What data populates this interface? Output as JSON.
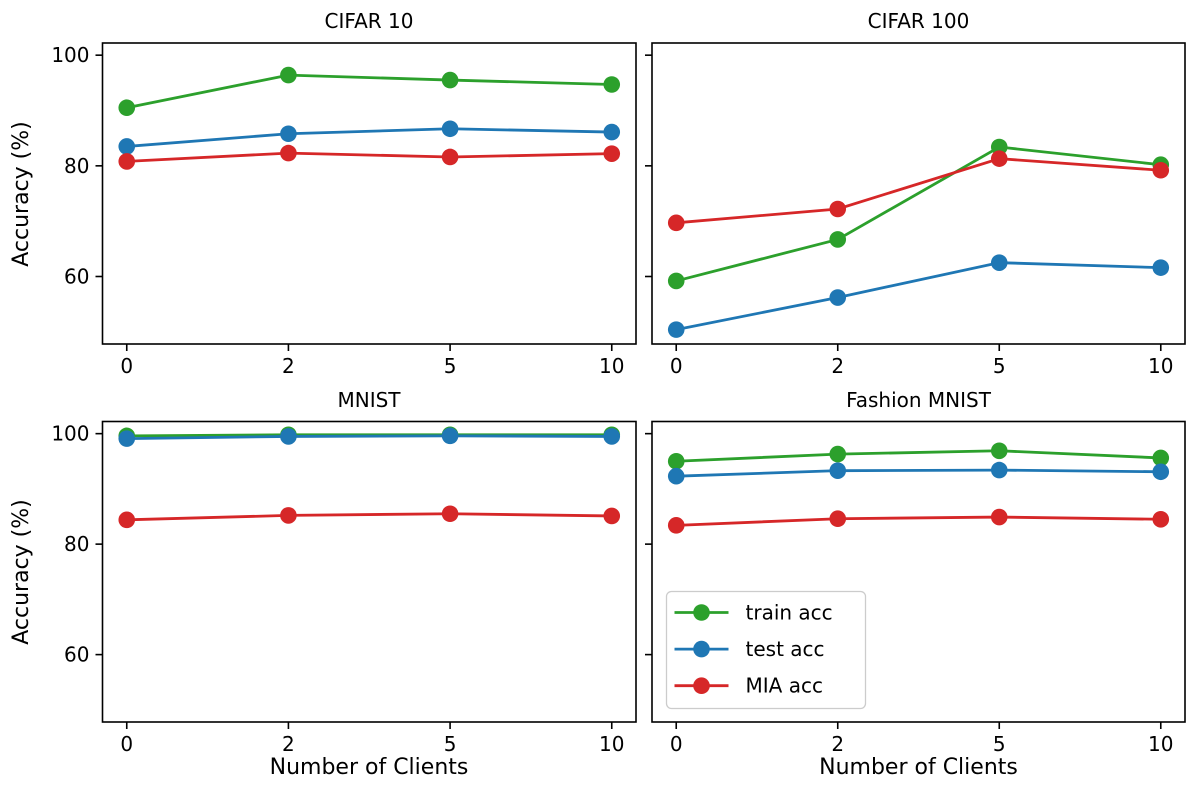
{
  "figure": {
    "ylabel": "Accuracy (%)",
    "xlabel": "Number of Clients",
    "background_color": "#ffffff",
    "text_color": "#000000",
    "legend": {
      "visible": true,
      "location": "lower left of Fashion MNIST panel",
      "items": [
        "train acc",
        "test acc",
        "MIA acc"
      ],
      "border_color": "#cccccc",
      "background_color": "#ffffff"
    },
    "series_colors": {
      "train acc": "#2ca02c",
      "test acc": "#1f77b4",
      "MIA acc": "#d62728"
    }
  },
  "chart_data": [
    {
      "type": "line",
      "title": "CIFAR 10",
      "categories": [
        "0",
        "2",
        "5",
        "10"
      ],
      "series": [
        {
          "name": "train acc",
          "color": "#2ca02c",
          "values": [
            90.5,
            96.4,
            95.5,
            94.7
          ]
        },
        {
          "name": "test acc",
          "color": "#1f77b4",
          "values": [
            83.5,
            85.8,
            86.7,
            86.1
          ]
        },
        {
          "name": "MIA acc",
          "color": "#d62728",
          "values": [
            80.8,
            82.3,
            81.6,
            82.2
          ]
        }
      ],
      "ylim": [
        47.8,
        102.2
      ],
      "yticks": [
        60,
        80,
        100
      ],
      "ytick_labels": [
        "60",
        "80",
        "100"
      ],
      "ytick_labels_shown": true,
      "xtick_labels_shown": true,
      "grid": false,
      "legend_shown": false
    },
    {
      "type": "line",
      "title": "CIFAR 100",
      "categories": [
        "0",
        "2",
        "5",
        "10"
      ],
      "series": [
        {
          "name": "train acc",
          "color": "#2ca02c",
          "values": [
            59.2,
            66.7,
            83.4,
            80.2
          ]
        },
        {
          "name": "test acc",
          "color": "#1f77b4",
          "values": [
            50.4,
            56.2,
            62.5,
            61.6
          ]
        },
        {
          "name": "MIA acc",
          "color": "#d62728",
          "values": [
            69.7,
            72.2,
            81.3,
            79.2
          ]
        }
      ],
      "ylim": [
        47.8,
        102.2
      ],
      "yticks": [
        60,
        80,
        100
      ],
      "ytick_labels": [
        "60",
        "80",
        "100"
      ],
      "ytick_labels_shown": false,
      "xtick_labels_shown": true,
      "grid": false,
      "legend_shown": false
    },
    {
      "type": "line",
      "title": "MNIST",
      "categories": [
        "0",
        "2",
        "5",
        "10"
      ],
      "series": [
        {
          "name": "train acc",
          "color": "#2ca02c",
          "values": [
            99.6,
            99.8,
            99.8,
            99.8
          ]
        },
        {
          "name": "test acc",
          "color": "#1f77b4",
          "values": [
            99.1,
            99.5,
            99.6,
            99.5
          ]
        },
        {
          "name": "MIA acc",
          "color": "#d62728",
          "values": [
            84.4,
            85.2,
            85.5,
            85.1
          ]
        }
      ],
      "ylim": [
        47.8,
        102.2
      ],
      "yticks": [
        60,
        80,
        100
      ],
      "ytick_labels": [
        "60",
        "80",
        "100"
      ],
      "ytick_labels_shown": true,
      "xtick_labels_shown": true,
      "grid": false,
      "legend_shown": false
    },
    {
      "type": "line",
      "title": "Fashion MNIST",
      "categories": [
        "0",
        "2",
        "5",
        "10"
      ],
      "series": [
        {
          "name": "train acc",
          "color": "#2ca02c",
          "values": [
            95.0,
            96.3,
            96.9,
            95.6
          ]
        },
        {
          "name": "test acc",
          "color": "#1f77b4",
          "values": [
            92.3,
            93.3,
            93.4,
            93.1
          ]
        },
        {
          "name": "MIA acc",
          "color": "#d62728",
          "values": [
            83.4,
            84.6,
            84.9,
            84.5
          ]
        }
      ],
      "ylim": [
        47.8,
        102.2
      ],
      "yticks": [
        60,
        80,
        100
      ],
      "ytick_labels": [
        "60",
        "80",
        "100"
      ],
      "ytick_labels_shown": false,
      "xtick_labels_shown": true,
      "grid": false,
      "legend_shown": true
    }
  ]
}
